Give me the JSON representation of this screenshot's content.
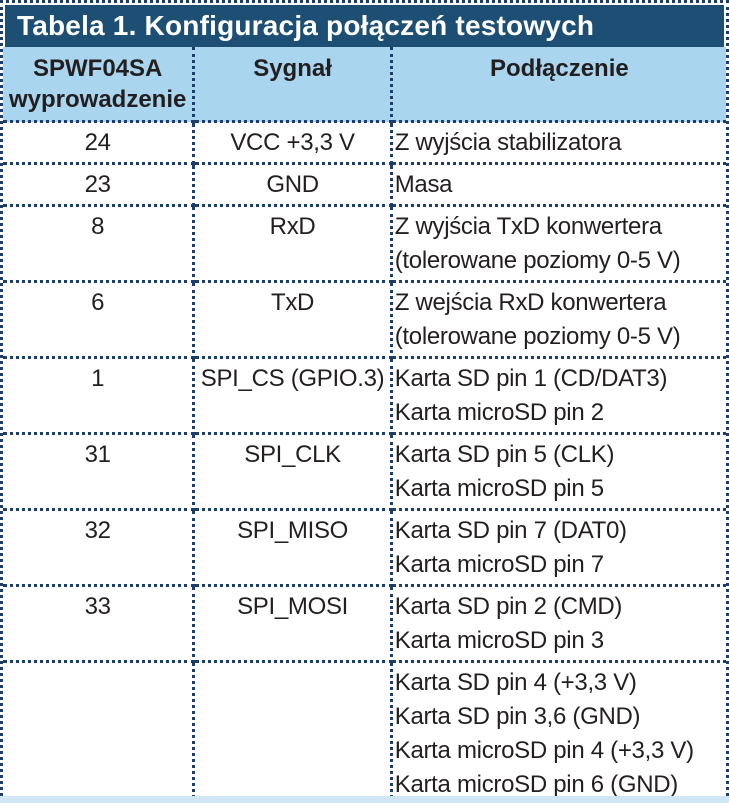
{
  "page": {
    "title": "Tabela 1. Konfiguracja połączeń testowych",
    "colors": {
      "title_bar_bg": "#1d4e74",
      "title_text": "#ffffff",
      "header_bg": "#a9d5ee",
      "border_dotted": "#1d3e6c",
      "body_text": "#231f20",
      "bottom_strip": "#cfe6f5"
    }
  },
  "table": {
    "columns": {
      "pin": "SPWF04SA\nwyprowadzenie",
      "signal": "Sygnał",
      "connection": "Podłączenie"
    },
    "rows": [
      {
        "pin": "24",
        "signal": "VCC +3,3 V",
        "connection": "Z wyjścia stabilizatora"
      },
      {
        "pin": "23",
        "signal": "GND",
        "connection": "Masa"
      },
      {
        "pin": "8",
        "signal": "RxD",
        "connection": "Z wyjścia TxD konwertera\n(tolerowane poziomy 0-5 V)"
      },
      {
        "pin": "6",
        "signal": "TxD",
        "connection": "Z wejścia RxD konwertera\n(tolerowane poziomy 0-5 V)"
      },
      {
        "pin": "1",
        "signal": "SPI_CS (GPIO.3)",
        "connection": "Karta SD pin 1 (CD/DAT3)\nKarta microSD pin 2"
      },
      {
        "pin": "31",
        "signal": "SPI_CLK",
        "connection": "Karta SD pin 5 (CLK)\nKarta microSD pin 5"
      },
      {
        "pin": "32",
        "signal": "SPI_MISO",
        "connection": "Karta SD pin 7 (DAT0)\nKarta microSD pin 7"
      },
      {
        "pin": "33",
        "signal": "SPI_MOSI",
        "connection": "Karta SD pin 2 (CMD)\nKarta microSD pin 3"
      },
      {
        "pin": "",
        "signal": "",
        "connection": "Karta SD pin 4 (+3,3 V)\nKarta SD pin 3,6 (GND)\nKarta microSD pin 4 (+3,3 V)\nKarta microSD pin 6 (GND)"
      }
    ]
  }
}
